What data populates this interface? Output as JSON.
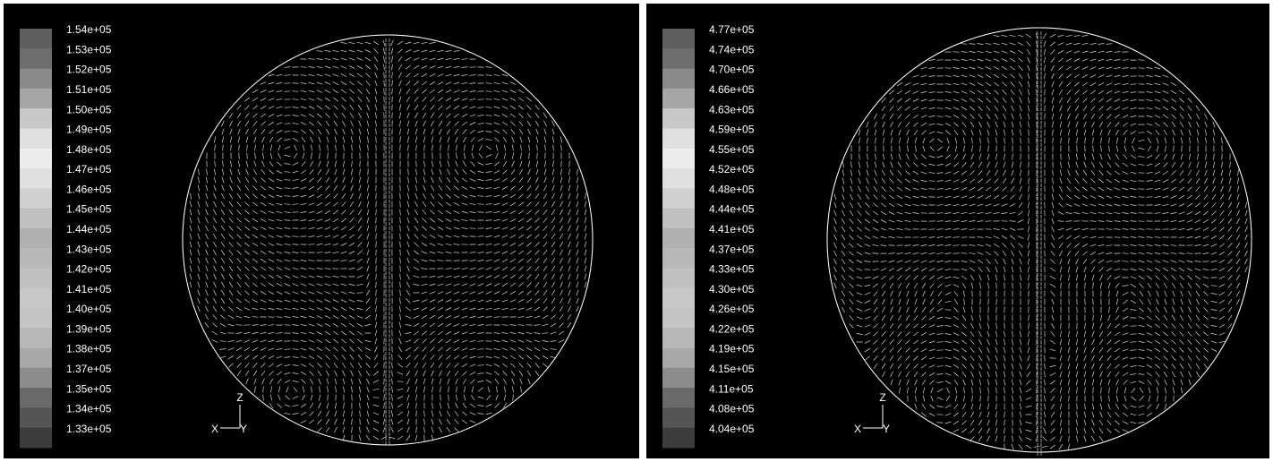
{
  "panels": [
    {
      "legend": {
        "labels": [
          "1.54e+05",
          "1.53e+05",
          "1.52e+05",
          "1.51e+05",
          "1.50e+05",
          "1.49e+05",
          "1.48e+05",
          "1.47e+05",
          "1.46e+05",
          "1.45e+05",
          "1.44e+05",
          "1.43e+05",
          "1.42e+05",
          "1.41e+05",
          "1.40e+05",
          "1.39e+05",
          "1.38e+05",
          "1.37e+05",
          "1.35e+05",
          "1.34e+05",
          "1.33e+05"
        ],
        "colors": [
          "#5f5f5f",
          "#6e6e6e",
          "#8a8a8a",
          "#a6a6a6",
          "#c8c8c8",
          "#e0e0e0",
          "#ececec",
          "#e0e0e0",
          "#d0d0d0",
          "#c0c0c0",
          "#b0b0b0",
          "#b8b8b8",
          "#c0c0c0",
          "#c8c8c8",
          "#c4c4c4",
          "#b8b8b8",
          "#a8a8a8",
          "#8c8c8c",
          "#6a6a6a",
          "#555555",
          "#3c3c3c"
        ]
      },
      "axes": {
        "x": "X",
        "y": "Y",
        "z": "Z"
      }
    },
    {
      "legend": {
        "labels": [
          "4.77e+05",
          "4.74e+05",
          "4.70e+05",
          "4.66e+05",
          "4.63e+05",
          "4.59e+05",
          "4.55e+05",
          "4.52e+05",
          "4.48e+05",
          "4.44e+05",
          "4.41e+05",
          "4.37e+05",
          "4.33e+05",
          "4.30e+05",
          "4.26e+05",
          "4.22e+05",
          "4.19e+05",
          "4.15e+05",
          "4.11e+05",
          "4.08e+05",
          "4.04e+05"
        ],
        "colors": [
          "#5f5f5f",
          "#6e6e6e",
          "#8a8a8a",
          "#a6a6a6",
          "#c8c8c8",
          "#e0e0e0",
          "#ececec",
          "#e0e0e0",
          "#d0d0d0",
          "#c0c0c0",
          "#b0b0b0",
          "#b8b8b8",
          "#c0c0c0",
          "#c8c8c8",
          "#c4c4c4",
          "#b8b8b8",
          "#a8a8a8",
          "#8c8c8c",
          "#6a6a6a",
          "#555555",
          "#3c3c3c"
        ]
      },
      "axes": {
        "x": "X",
        "y": "Y",
        "z": "Z"
      }
    }
  ]
}
